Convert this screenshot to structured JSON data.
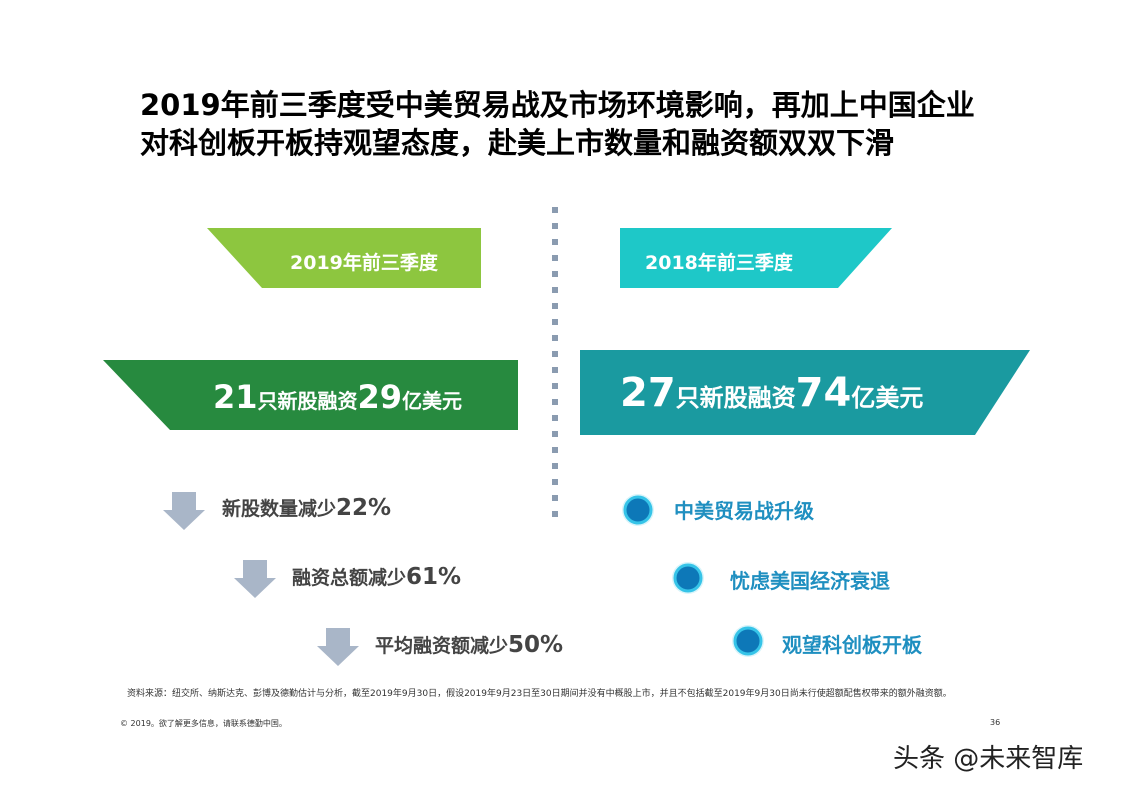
{
  "title": "2019年前三季度受中美贸易战及市场环境影响，再加上中国企业对科创板开板持观望态度，赴美上市数量和融资额双双下滑",
  "left": {
    "header": "2019年前三季度",
    "headline": {
      "count": "21",
      "count_unit": "只新股融资",
      "amount": "29",
      "amount_unit": "亿美元"
    },
    "items": [
      {
        "label": "新股数量减少",
        "value": "22%"
      },
      {
        "label": "融资总额减少",
        "value": "61%"
      },
      {
        "label": "平均融资额减少",
        "value": "50%"
      }
    ]
  },
  "right": {
    "header": "2018年前三季度",
    "headline": {
      "count": "27",
      "count_unit": "只新股融资",
      "amount": "74",
      "amount_unit": "亿美元"
    },
    "items": [
      "中美贸易战升级",
      "忧虑美国经济衰退",
      "观望科创板开板"
    ]
  },
  "footer": {
    "source": "资料来源：纽交所、纳斯达克、彭博及德勤估计与分析，截至2019年9月30日，假设2019年9月23日至30日期间并没有中概股上市，并且不包括截至2019年9月30日尚未行使超额配售权带来的额外融资额。",
    "copyright": "© 2019。欲了解更多信息，请联系德勤中国。",
    "page": "36"
  },
  "watermark": "头条 @未来智库"
}
